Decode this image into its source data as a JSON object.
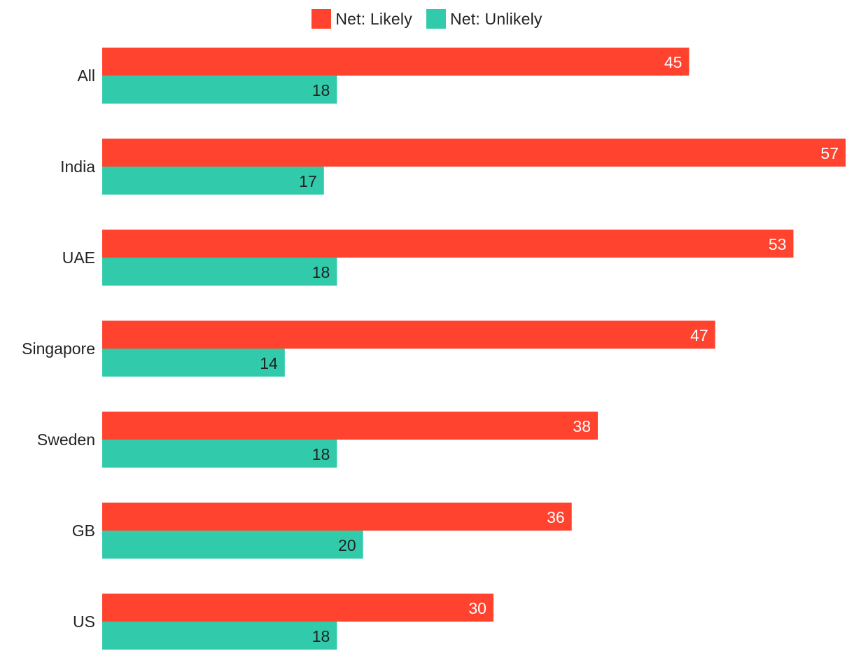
{
  "legend": {
    "position": "top-center",
    "items": [
      {
        "label": "Net: Likely",
        "color": "#ff432e"
      },
      {
        "label": "Net: Unlikely",
        "color": "#31cbab"
      }
    ]
  },
  "chart_data": {
    "type": "bar",
    "orientation": "horizontal",
    "categories": [
      "All",
      "India",
      "UAE",
      "Singapore",
      "Sweden",
      "GB",
      "US"
    ],
    "series": [
      {
        "name": "Net: Likely",
        "color": "#ff432e",
        "label_color": "#ffffff",
        "values": [
          45,
          57,
          53,
          47,
          38,
          36,
          30
        ]
      },
      {
        "name": "Net: Unlikely",
        "color": "#31cbab",
        "label_color": "#222222",
        "values": [
          18,
          17,
          18,
          14,
          18,
          20,
          18
        ]
      }
    ],
    "xlim": [
      0,
      57
    ],
    "grid": false,
    "data_labels": true
  }
}
